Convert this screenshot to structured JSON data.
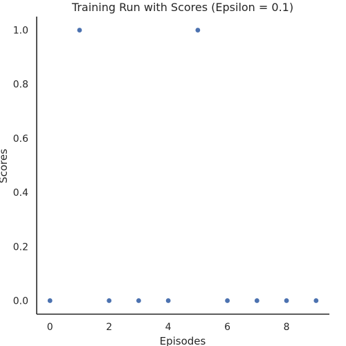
{
  "chart_data": {
    "type": "scatter",
    "title": "Training Run with Scores (Epsilon = 0.1)",
    "xlabel": "Episodes",
    "ylabel": "Scores",
    "x": [
      0,
      1,
      2,
      3,
      4,
      5,
      6,
      7,
      8,
      9
    ],
    "y": [
      0.0,
      1.0,
      0.0,
      0.0,
      0.0,
      1.0,
      0.0,
      0.0,
      0.0,
      0.0
    ],
    "xlim": [
      -0.45,
      9.45
    ],
    "ylim": [
      -0.05,
      1.05
    ],
    "xticks": [
      0,
      2,
      4,
      6,
      8
    ],
    "xtick_labels": [
      "0",
      "2",
      "4",
      "6",
      "8"
    ],
    "yticks": [
      0.0,
      0.2,
      0.4,
      0.6,
      0.8,
      1.0
    ],
    "ytick_labels": [
      "0.0",
      "0.2",
      "0.4",
      "0.6",
      "0.8",
      "1.0"
    ],
    "grid": false,
    "marker_color": "#4c72b0",
    "axis_color": "#262626"
  }
}
